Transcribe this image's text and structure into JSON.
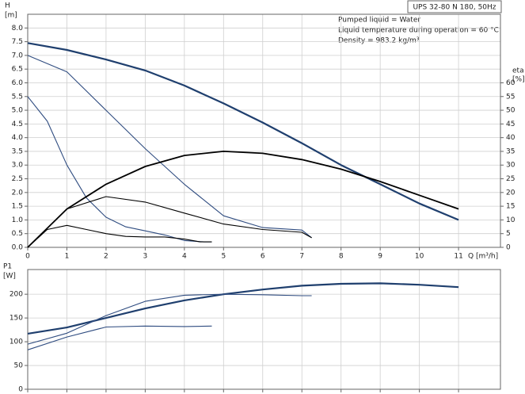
{
  "chart_data": [
    {
      "type": "line",
      "title": "UPS 32-80 N 180, 50Hz",
      "annotations": [
        "Pumped liquid = Water",
        "Liquid temperature during operation = 60 °C",
        "Density = 983.2 kg/m³"
      ],
      "y_label": "H",
      "y_unit": "[m]",
      "y2_label": "eta",
      "y2_unit": "[%]",
      "x_label": "Q [m³/h]",
      "xlim": [
        0,
        12.07
      ],
      "xticks": [
        0,
        1,
        2,
        3,
        4,
        5,
        6,
        7,
        8,
        9,
        10,
        11
      ],
      "ylim": [
        0,
        8.5
      ],
      "yticks": [
        {
          "value": 0,
          "label": "0.0"
        },
        0.5,
        {
          "value": 1,
          "label": "1.0"
        },
        1.5,
        {
          "value": 2,
          "label": "2.0"
        },
        2.5,
        {
          "value": 3,
          "label": "3.0"
        },
        3.5,
        {
          "value": 4,
          "label": "4.0"
        },
        4.5,
        {
          "value": 5,
          "label": "5.0"
        },
        5.5,
        {
          "value": 6,
          "label": "6.0"
        },
        6.5,
        {
          "value": 7,
          "label": "7.0"
        },
        7.5,
        {
          "value": 8,
          "label": "8.0"
        }
      ],
      "y2lim": [
        0,
        85
      ],
      "y2ticks": [
        0,
        5,
        10,
        15,
        20,
        25,
        30,
        35,
        40,
        45,
        50,
        55,
        60
      ],
      "grid": true,
      "series": [
        {
          "color": "#1f3f6e",
          "width": 2.2,
          "x": [
            0,
            1,
            2,
            3,
            4,
            5,
            6,
            7,
            8,
            9,
            10,
            11
          ],
          "values": [
            7.45,
            7.2,
            6.85,
            6.45,
            5.9,
            5.25,
            4.55,
            3.8,
            3.0,
            2.3,
            1.6,
            1.0
          ]
        },
        {
          "color": "#2f4c80",
          "width": 1.1,
          "x": [
            0,
            1,
            2,
            3,
            4,
            5,
            6,
            7,
            7.25
          ],
          "values": [
            7.0,
            6.4,
            5.0,
            3.6,
            2.3,
            1.15,
            0.72,
            0.63,
            0.35
          ]
        },
        {
          "color": "#2f4c80",
          "width": 1.1,
          "x": [
            0,
            0.5,
            1,
            1.5,
            2,
            2.5,
            3,
            3.5,
            4,
            4.5,
            4.7
          ],
          "values": [
            5.5,
            4.6,
            3.0,
            1.8,
            1.1,
            0.75,
            0.6,
            0.45,
            0.25,
            0.2,
            0.2
          ]
        },
        {
          "axis": "y2",
          "color": "#000000",
          "width": 1.8,
          "x": [
            0,
            1,
            2,
            3,
            4,
            5,
            6,
            7,
            8,
            9,
            10,
            11
          ],
          "values": [
            0,
            14,
            23,
            29.5,
            33.5,
            35,
            34.3,
            32,
            28.5,
            24,
            19,
            14
          ]
        },
        {
          "axis": "y2",
          "color": "#000000",
          "width": 1.1,
          "x": [
            0,
            1,
            2,
            3,
            4,
            5,
            6,
            7,
            7.25
          ],
          "values": [
            0,
            14,
            18.5,
            16.5,
            12.5,
            8.5,
            6.5,
            5.5,
            3.5
          ]
        },
        {
          "axis": "y2",
          "color": "#000000",
          "width": 1.1,
          "x": [
            0,
            0.5,
            1,
            1.5,
            2,
            2.5,
            3,
            3.5,
            4,
            4.4,
            4.7
          ],
          "values": [
            0,
            6.5,
            8,
            6.5,
            5,
            4,
            3.8,
            3.8,
            3,
            2,
            2
          ]
        }
      ]
    },
    {
      "type": "line",
      "y_label": "P1",
      "y_unit": "[W]",
      "xlim": [
        0,
        12.07
      ],
      "xticks": [
        0,
        1,
        2,
        3,
        4,
        5,
        6,
        7,
        8,
        9,
        10,
        11
      ],
      "ylim": [
        0,
        252
      ],
      "yticks": [
        0,
        50,
        100,
        150,
        200
      ],
      "grid": true,
      "series": [
        {
          "color": "#1f3f6e",
          "width": 2.2,
          "x": [
            0,
            1,
            2,
            3,
            4,
            5,
            6,
            7,
            8,
            9,
            10,
            11
          ],
          "values": [
            117,
            130,
            150,
            170,
            187,
            200,
            210,
            218,
            222,
            223,
            220,
            215
          ]
        },
        {
          "color": "#2f4c80",
          "width": 1.1,
          "x": [
            0,
            1,
            2,
            3,
            4,
            5,
            6,
            7,
            7.25
          ],
          "values": [
            95,
            118,
            155,
            185,
            198,
            200,
            199,
            197,
            197
          ]
        },
        {
          "color": "#2f4c80",
          "width": 1.1,
          "x": [
            0,
            1,
            2,
            3,
            4,
            4.7
          ],
          "values": [
            83,
            110,
            131,
            133,
            132,
            133
          ]
        }
      ]
    }
  ]
}
